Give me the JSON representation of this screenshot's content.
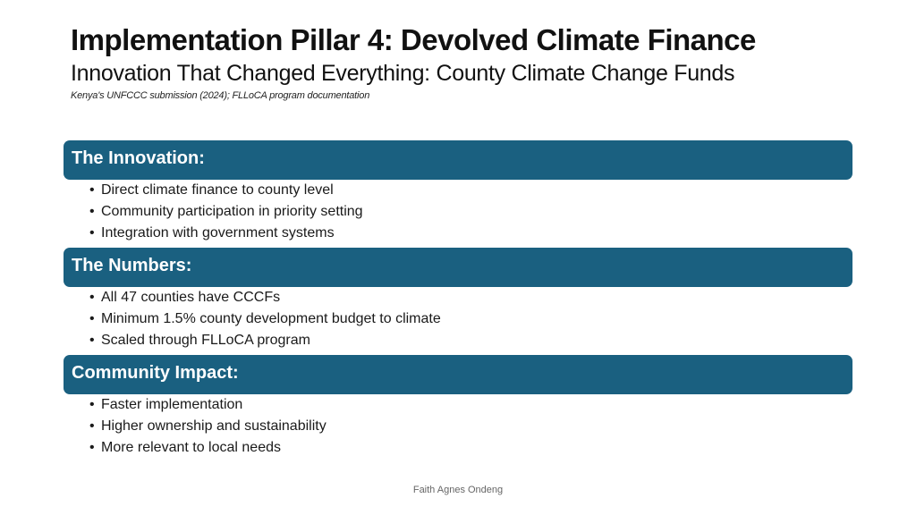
{
  "slide": {
    "title": "Implementation Pillar 4: Devolved Climate Finance",
    "subtitle": "Innovation That Changed Everything: County Climate Change Funds",
    "source": "Kenya's UNFCCC submission (2024); FLLoCA program documentation",
    "sections": [
      {
        "heading": "The Innovation:",
        "bullets": [
          "Direct climate finance to county level",
          "Community participation in priority setting",
          "Integration with government systems"
        ]
      },
      {
        "heading": "The Numbers:",
        "bullets": [
          "All 47 counties have CCCFs",
          "Minimum 1.5% county development budget to climate",
          "Scaled through FLLoCA program"
        ]
      },
      {
        "heading": "Community Impact:",
        "bullets": [
          "Faster implementation",
          "Higher ownership and sustainability",
          "More relevant to local needs"
        ]
      }
    ],
    "bullet_glyph": "•",
    "footer": "Faith Agnes Ondeng",
    "colors": {
      "header_fill": "#1a6080",
      "header_text": "#ffffff"
    }
  }
}
